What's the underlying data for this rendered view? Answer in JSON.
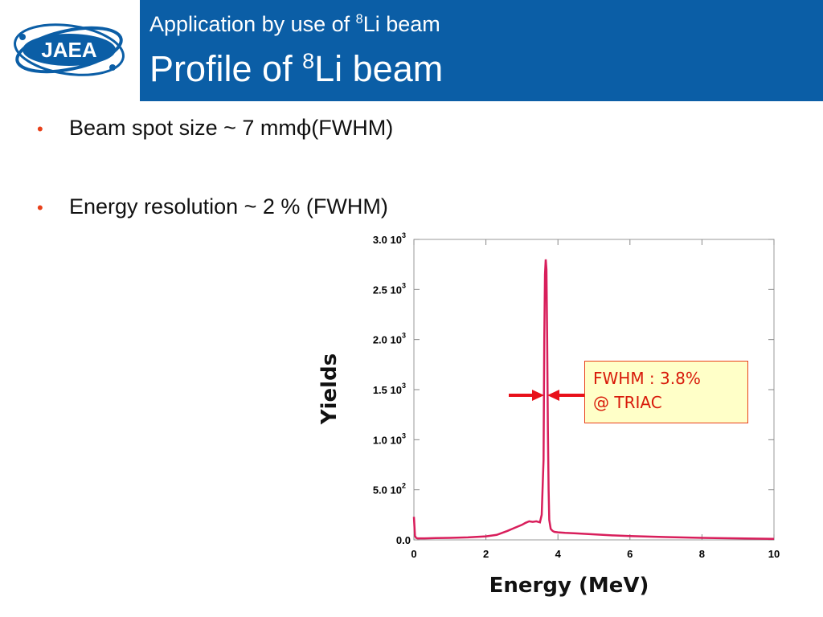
{
  "logo": {
    "text": "JAEA"
  },
  "header": {
    "subtitle_pre": "Application by use of ",
    "subtitle_sup": "8",
    "subtitle_post": "Li beam",
    "title_pre": "Profile of  ",
    "title_sup": "8",
    "title_post": "Li beam"
  },
  "bullets": [
    {
      "pre": "Beam spot size ~ 7 mm",
      "symbol": "ϕ",
      "post": " (FWHM)"
    },
    {
      "pre": "Energy resolution ~ 2 % (FWHM)",
      "symbol": "",
      "post": ""
    }
  ],
  "annotation": {
    "line1": "FWHM : 3.8%",
    "line2": "@ TRIAC"
  },
  "colors": {
    "header": "#0b5ea6",
    "series": "#d81e5b",
    "arrow": "#e8101a",
    "bullet": "#e8401a"
  },
  "chart_data": {
    "type": "line",
    "xlabel": "Energy (MeV)",
    "ylabel": "Yields",
    "xlim": [
      0,
      10
    ],
    "ylim": [
      0,
      3000
    ],
    "x_ticks": [
      "0",
      "2",
      "4",
      "6",
      "8",
      "10"
    ],
    "y_ticks": [
      {
        "mant": "0.0",
        "exp": ""
      },
      {
        "mant": "5.0 10",
        "exp": "2"
      },
      {
        "mant": "1.0 10",
        "exp": "3"
      },
      {
        "mant": "1.5 10",
        "exp": "3"
      },
      {
        "mant": "2.0 10",
        "exp": "3"
      },
      {
        "mant": "2.5 10",
        "exp": "3"
      },
      {
        "mant": "3.0 10",
        "exp": "3"
      }
    ],
    "grid": false,
    "series": [
      {
        "x": [
          0,
          0.03,
          0.06,
          0.1,
          0.3,
          0.6,
          1.0,
          1.5,
          2.0,
          2.3,
          2.6,
          2.8,
          3.0,
          3.1,
          3.2,
          3.3,
          3.4,
          3.5,
          3.55,
          3.6,
          3.62,
          3.64,
          3.66,
          3.68,
          3.7,
          3.72,
          3.74,
          3.76,
          3.8,
          3.85,
          3.9,
          4.0,
          4.2,
          4.5,
          5.0,
          5.5,
          6.0,
          7.0,
          8.0,
          9.0,
          10.0
        ],
        "y": [
          230,
          40,
          20,
          15,
          15,
          18,
          20,
          25,
          35,
          50,
          90,
          120,
          150,
          170,
          185,
          180,
          185,
          175,
          250,
          800,
          2000,
          2650,
          2800,
          2700,
          2000,
          1100,
          500,
          200,
          110,
          90,
          80,
          75,
          70,
          65,
          55,
          45,
          38,
          28,
          20,
          15,
          10
        ]
      }
    ]
  }
}
